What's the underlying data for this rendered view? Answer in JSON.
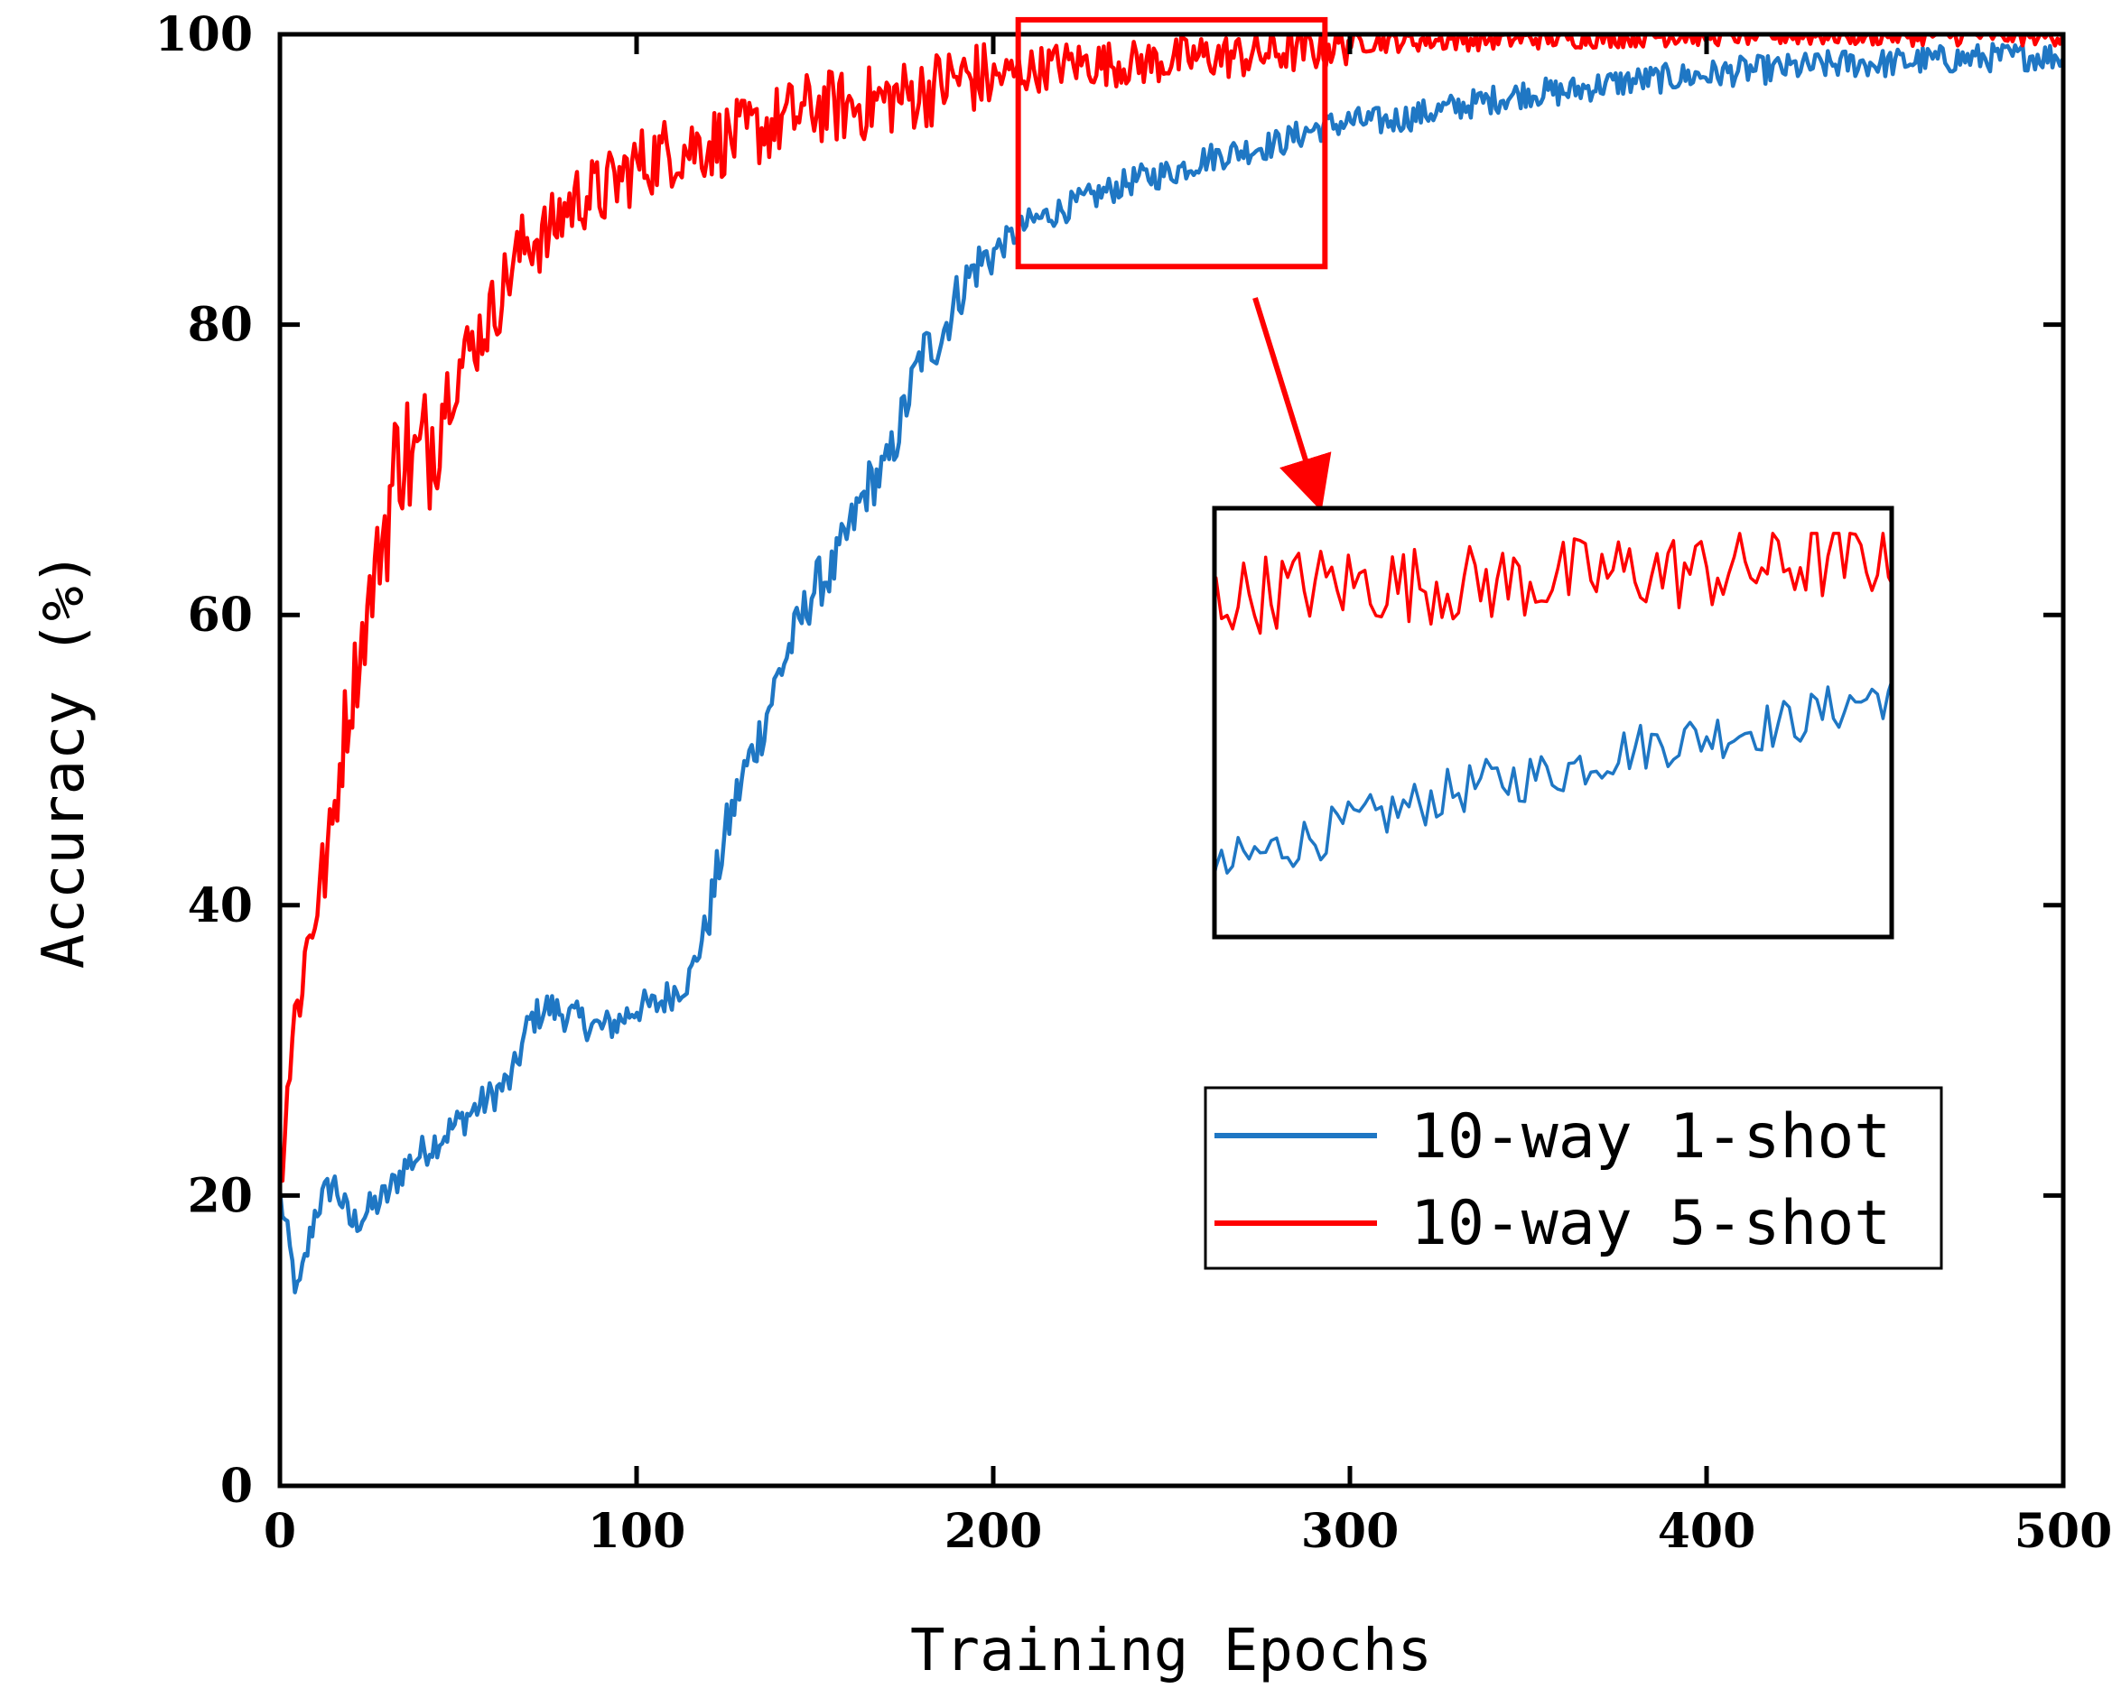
{
  "chart_data": {
    "type": "line",
    "title": "",
    "xlabel": "Training Epochs",
    "ylabel": "Accuracy (%)",
    "xlim": [
      0,
      500
    ],
    "ylim": [
      0,
      100
    ],
    "xticks": [
      0,
      100,
      200,
      300,
      400,
      500
    ],
    "yticks": [
      0,
      20,
      40,
      60,
      80,
      100
    ],
    "grid": false,
    "legend_position": "lower-right",
    "series": [
      {
        "name": "10-way 1-shot",
        "color": "#1f77c4",
        "x": [
          0,
          5,
          10,
          15,
          20,
          25,
          30,
          35,
          40,
          45,
          50,
          55,
          60,
          65,
          70,
          75,
          80,
          85,
          90,
          95,
          100,
          105,
          110,
          115,
          120,
          125,
          130,
          135,
          140,
          145,
          150,
          155,
          160,
          165,
          170,
          175,
          180,
          185,
          190,
          195,
          200,
          210,
          220,
          230,
          240,
          250,
          260,
          270,
          280,
          290,
          300,
          310,
          320,
          330,
          340,
          350,
          360,
          370,
          380,
          390,
          400,
          410,
          420,
          430,
          440,
          450,
          460,
          470,
          480,
          490,
          500
        ],
        "values": [
          20,
          13,
          19,
          21,
          18,
          19,
          20,
          22,
          23,
          24,
          25,
          26,
          27,
          28,
          32,
          33,
          32.5,
          32,
          31.5,
          32,
          33,
          33,
          34,
          35,
          39,
          45,
          49,
          52,
          56,
          59,
          62,
          63,
          66,
          69,
          70,
          74,
          78,
          79,
          82,
          84,
          85,
          87,
          88,
          89,
          90,
          90.5,
          91.5,
          92,
          92.5,
          93.5,
          94,
          94,
          94.5,
          95,
          95.5,
          96,
          96,
          96.5,
          96.8,
          97,
          97.2,
          97.5,
          97.6,
          97.8,
          98,
          98,
          98.2,
          98.3,
          98.4,
          98.5,
          98.5
        ]
      },
      {
        "name": "10-way 5-shot",
        "color": "#ff0000",
        "x": [
          0,
          3,
          6,
          10,
          14,
          18,
          22,
          26,
          30,
          34,
          38,
          42,
          46,
          50,
          55,
          60,
          65,
          70,
          75,
          80,
          85,
          90,
          95,
          100,
          110,
          120,
          130,
          140,
          150,
          160,
          170,
          180,
          190,
          200,
          210,
          220,
          230,
          240,
          250,
          260,
          270,
          280,
          290,
          300,
          320,
          340,
          360,
          380,
          400,
          420,
          440,
          460,
          480,
          500
        ],
        "values": [
          22,
          30,
          35,
          40,
          44,
          52,
          57,
          62,
          67,
          72,
          70,
          72,
          75,
          77,
          79,
          81,
          84,
          86,
          86,
          88,
          89,
          89,
          90,
          91,
          92,
          92.5,
          93,
          94,
          95,
          95,
          95.5,
          96,
          97,
          97,
          97.5,
          98,
          98,
          98,
          98.2,
          98.5,
          98.5,
          98.8,
          99,
          99.5,
          99.6,
          99.7,
          99.8,
          99.9,
          100,
          100,
          100,
          100,
          100,
          100
        ]
      }
    ],
    "inset": {
      "type": "line",
      "source_xlim": [
        207,
        293
      ],
      "source_ylim": [
        84,
        101
      ]
    }
  }
}
